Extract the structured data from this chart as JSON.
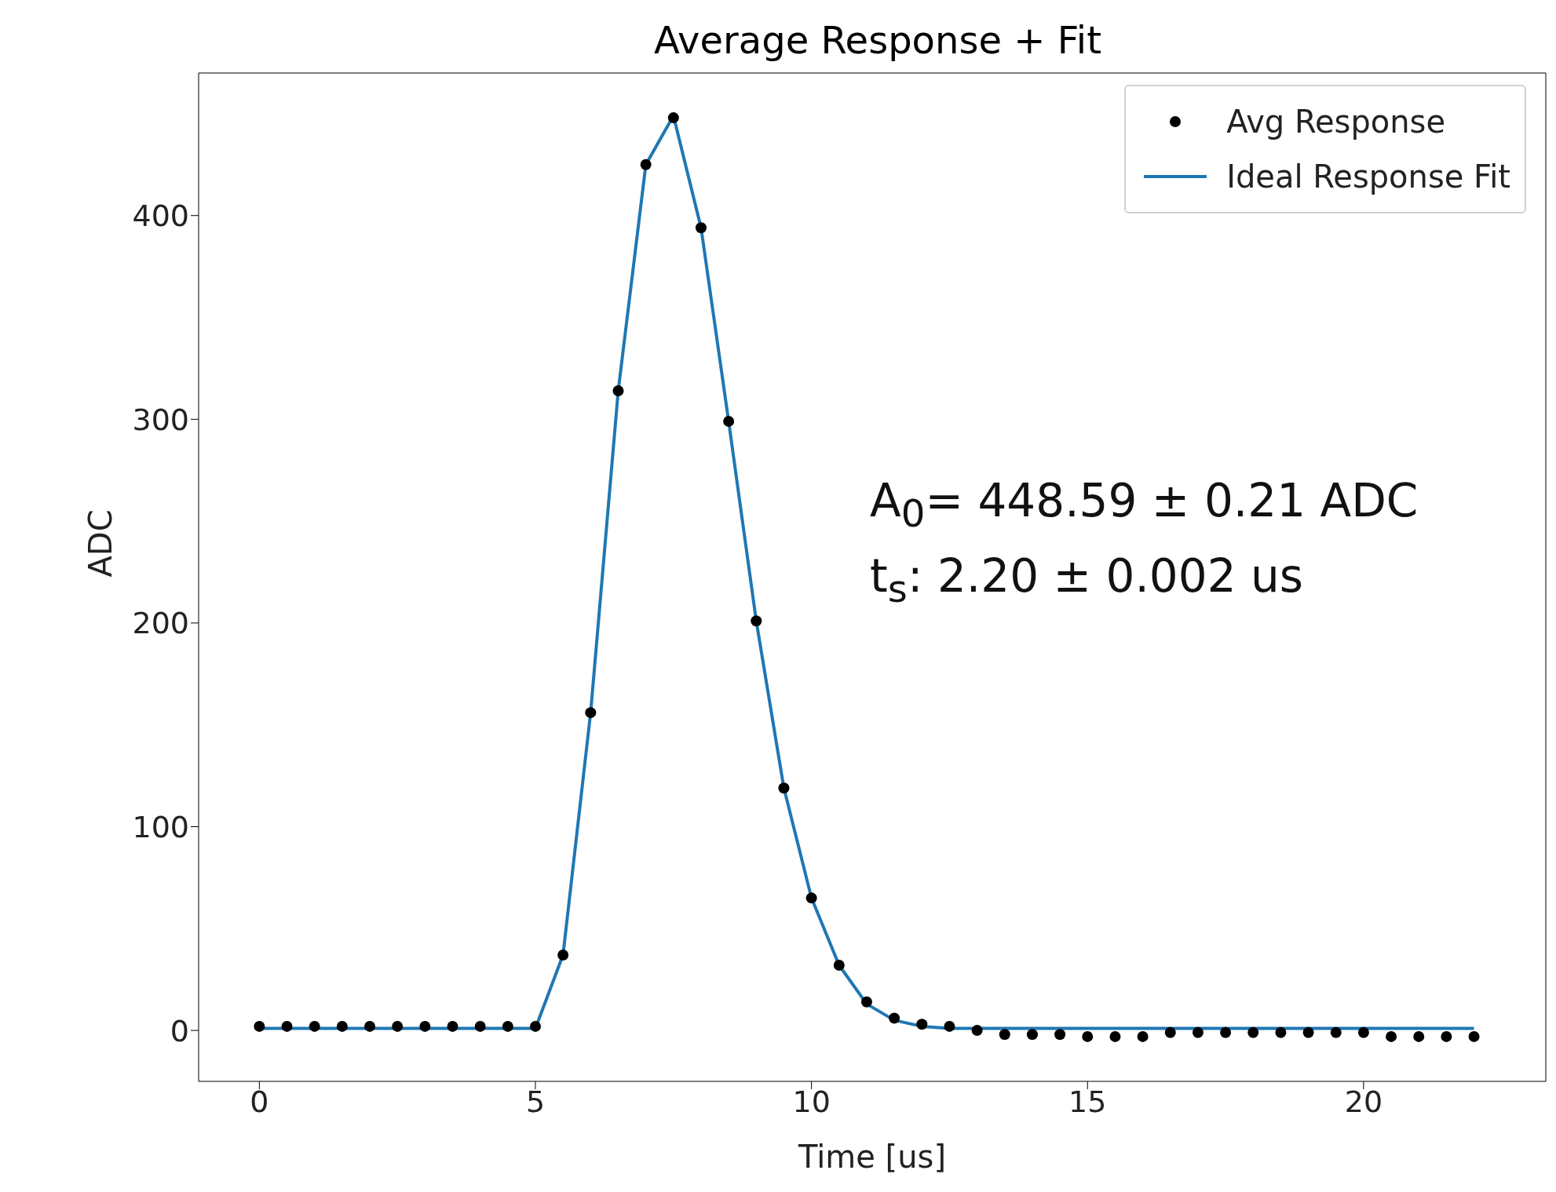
{
  "chart_data": {
    "type": "scatter",
    "title": "Average Response + Fit",
    "xlabel": "Time [us]",
    "ylabel": "ADC",
    "x": [
      0,
      0.5,
      1,
      1.5,
      2,
      2.5,
      3,
      3.5,
      4,
      4.5,
      5,
      5.5,
      6,
      6.5,
      7,
      7.5,
      8,
      8.5,
      9,
      9.5,
      10,
      10.5,
      11,
      11.5,
      12,
      12.5,
      13,
      13.5,
      14,
      14.5,
      15,
      15.5,
      16,
      16.5,
      17,
      17.5,
      18,
      18.5,
      19,
      19.5,
      20,
      20.5,
      21,
      21.5,
      22
    ],
    "series": [
      {
        "name": "Avg Response",
        "color": "#000000",
        "marker": "circle",
        "values": [
          2,
          2,
          2,
          2,
          2,
          2,
          2,
          2,
          2,
          2,
          2,
          37,
          156,
          314,
          425,
          448,
          394,
          299,
          201,
          119,
          65,
          32,
          14,
          6,
          3,
          2,
          0,
          -2,
          -2,
          -2,
          -3,
          -3,
          -3,
          -1,
          -1,
          -1,
          -1,
          -1,
          -1,
          -1,
          -1,
          -3,
          -3,
          -3,
          -3
        ]
      },
      {
        "name": "Ideal Response Fit",
        "type": "line",
        "color": "#1f77b4",
        "marker": "none",
        "values": [
          1,
          1,
          1,
          1,
          1,
          1,
          1,
          1,
          1,
          1,
          1,
          37,
          156,
          314,
          425,
          449,
          394,
          299,
          201,
          119,
          65,
          32,
          13,
          5,
          2,
          1,
          1,
          1,
          1,
          1,
          1,
          1,
          1,
          1,
          1,
          1,
          1,
          1,
          1,
          1,
          1,
          1,
          1,
          1,
          1
        ]
      }
    ],
    "xlim": [
      -1.1,
      23.3
    ],
    "ylim": [
      -25,
      470
    ],
    "xticks": [
      0,
      5,
      10,
      15,
      20
    ],
    "yticks": [
      0,
      100,
      200,
      300,
      400
    ],
    "grid": false,
    "legend": "top right",
    "annotations": [
      "A$_{0}$= 448.59 ± 0.21 ADC",
      "t$_{s}$: 2.20 ± 0.002 us"
    ]
  }
}
